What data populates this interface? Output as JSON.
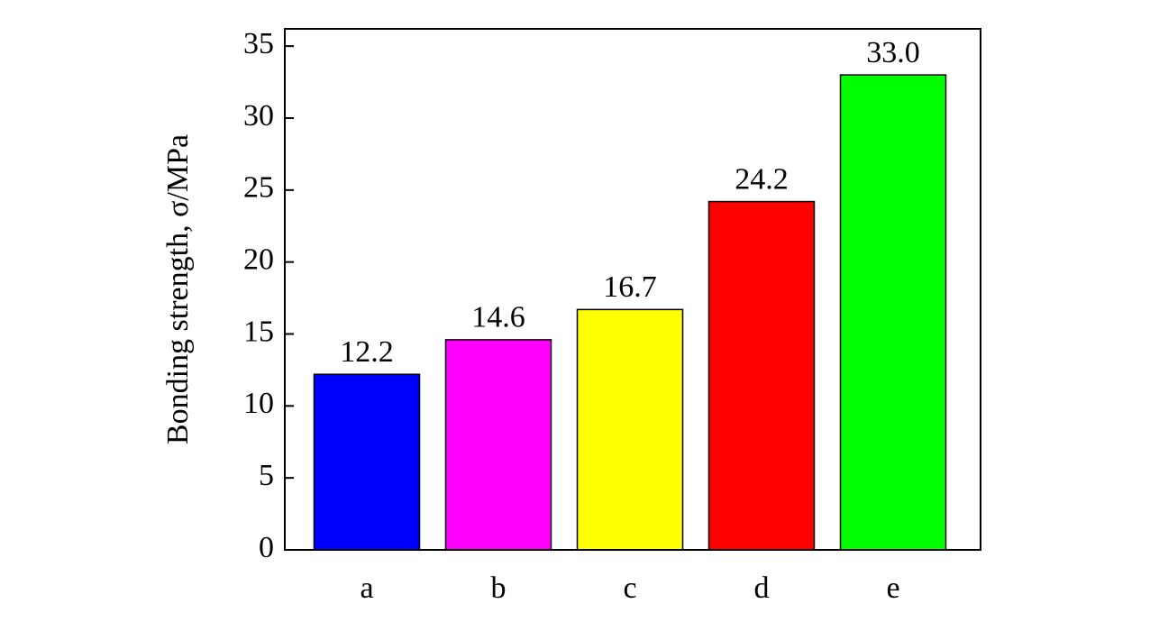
{
  "chart_data": {
    "type": "bar",
    "ylabel": "Bonding strength, σ/MPa",
    "categories": [
      "a",
      "b",
      "c",
      "d",
      "e"
    ],
    "values": [
      12.2,
      14.6,
      16.7,
      24.2,
      33.0
    ],
    "value_labels": [
      "12.2",
      "14.6",
      "16.7",
      "24.2",
      "33.0"
    ],
    "colors": [
      "#0000ff",
      "#ff00ff",
      "#ffff00",
      "#ff0000",
      "#00ff00"
    ],
    "ylim": [
      0,
      36.2
    ],
    "yticks": [
      0,
      5,
      10,
      15,
      20,
      25,
      30,
      35
    ],
    "grid": false
  }
}
